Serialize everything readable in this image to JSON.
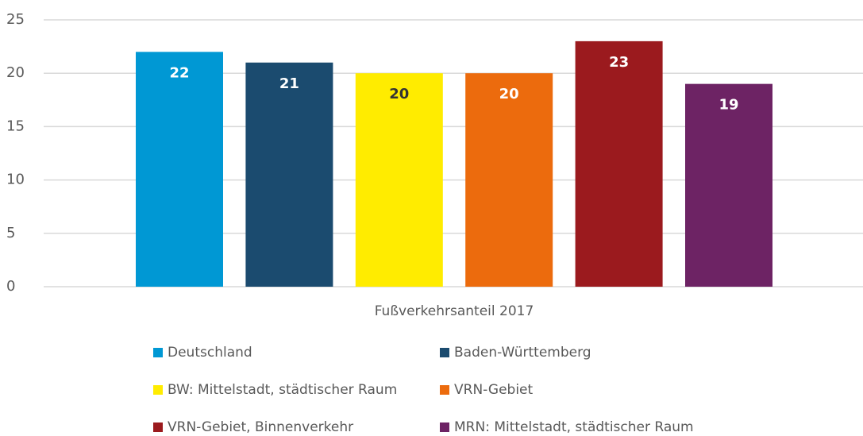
{
  "chart_data": {
    "type": "bar",
    "categories": [
      "Fußverkehrsanteil 2017"
    ],
    "series": [
      {
        "name": "Deutschland",
        "color": "#0098d4",
        "values": [
          22
        ]
      },
      {
        "name": "Baden-Württemberg",
        "color": "#1b4b6f",
        "values": [
          21
        ]
      },
      {
        "name": "BW: Mittelstadt, städtischer Raum",
        "color": "#ffec00",
        "values": [
          20
        ]
      },
      {
        "name": "VRN-Gebiet",
        "color": "#ec6b0d",
        "values": [
          20
        ]
      },
      {
        "name": "VRN-Gebiet, Binnenverkehr",
        "color": "#9b1a1e",
        "values": [
          23
        ]
      },
      {
        "name": "MRN: Mittelstadt, städtischer Raum",
        "color": "#6d2364",
        "values": [
          19
        ]
      }
    ],
    "ylim": [
      0,
      25
    ],
    "yticks": [
      0,
      5,
      10,
      15,
      20,
      25
    ],
    "grid": true,
    "legend": "bottom"
  }
}
